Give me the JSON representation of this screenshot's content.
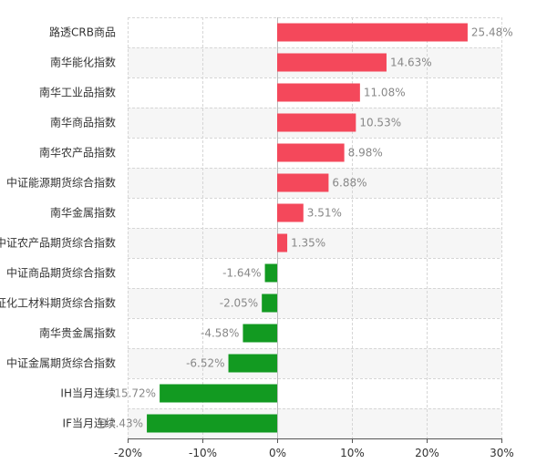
{
  "chart_data": {
    "type": "bar",
    "orientation": "horizontal",
    "categories": [
      "路透CRB商品",
      "南华能化指数",
      "南华工业品指数",
      "南华商品指数",
      "南华农产品指数",
      "中证能源期货综合指数",
      "南华金属指数",
      "中证农产品期货综合指数",
      "中证商品期货综合指数",
      "中证化工材料期货综合指数",
      "南华贵金属指数",
      "中证金属期货综合指数",
      "IH当月连续",
      "IF当月连续"
    ],
    "values": [
      25.48,
      14.63,
      11.08,
      10.53,
      8.98,
      6.88,
      3.51,
      1.35,
      -1.64,
      -2.05,
      -4.58,
      -6.52,
      -15.72,
      -17.43
    ],
    "value_labels": [
      "25.48%",
      "14.63%",
      "11.08%",
      "10.53%",
      "8.98%",
      "6.88%",
      "3.51%",
      "1.35%",
      "-1.64%",
      "-2.05%",
      "-4.58%",
      "-6.52%",
      "-15.72%",
      "-17.43%"
    ],
    "xlim": [
      -20,
      30
    ],
    "xticks": [
      -20,
      -10,
      0,
      10,
      20,
      30
    ],
    "xtick_labels": [
      "-20%",
      "-10%",
      "0%",
      "10%",
      "20%",
      "30%"
    ],
    "colors": {
      "positive": "#f4485b",
      "negative": "#129a21",
      "band": "#f6f6f6",
      "grid": "#d6d6d6",
      "axis": "#555555"
    },
    "grid": true,
    "legend": "none"
  }
}
